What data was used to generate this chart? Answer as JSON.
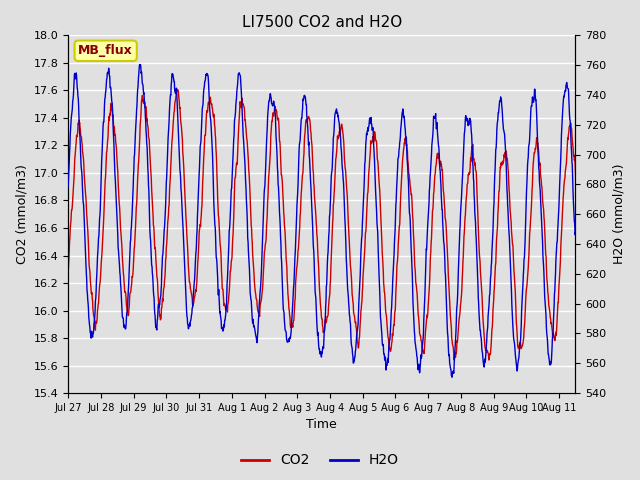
{
  "title": "LI7500 CO2 and H2O",
  "xlabel": "Time",
  "ylabel_left": "CO2 (mmol/m3)",
  "ylabel_right": "H2O (mmol/m3)",
  "co2_ylim": [
    15.4,
    18.0
  ],
  "h2o_ylim": [
    540,
    780
  ],
  "co2_yticks": [
    15.4,
    15.6,
    15.8,
    16.0,
    16.2,
    16.4,
    16.6,
    16.8,
    17.0,
    17.2,
    17.4,
    17.6,
    17.8,
    18.0
  ],
  "h2o_yticks": [
    540,
    560,
    580,
    600,
    620,
    640,
    660,
    680,
    700,
    720,
    740,
    760,
    780
  ],
  "xtick_labels": [
    "Jul 27",
    "Jul 28",
    "Jul 29",
    "Jul 30",
    "Jul 31",
    "Aug 1",
    "Aug 2",
    "Aug 3",
    "Aug 4",
    "Aug 5",
    "Aug 6",
    "Aug 7",
    "Aug 8",
    "Aug 9",
    "Aug 10",
    "Aug 11"
  ],
  "co2_color": "#CC0000",
  "h2o_color": "#0000CC",
  "background_color": "#E0E0E0",
  "grid_color": "#FFFFFF",
  "annotation_text": "MB_flux",
  "annotation_bg": "#FFFFAA",
  "annotation_edge": "#CCCC00",
  "annotation_text_color": "#880000",
  "n_points": 1500,
  "seed": 42
}
